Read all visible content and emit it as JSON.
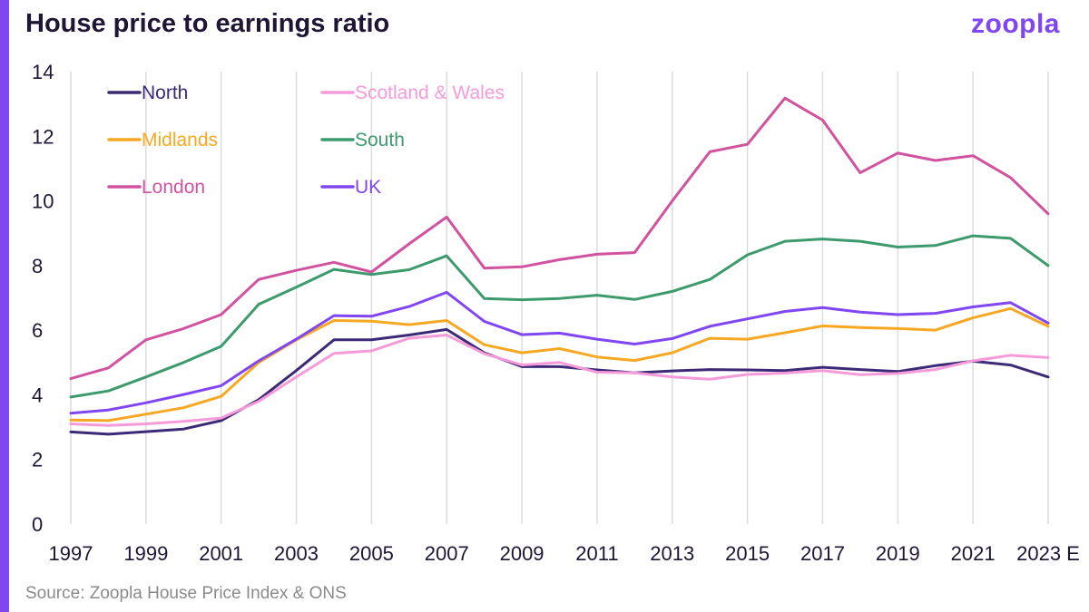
{
  "header": {
    "title": "House price to earnings ratio",
    "logo": "zoopla"
  },
  "footer": {
    "source": "Source: Zoopla House Price Index & ONS"
  },
  "colors": {
    "accent": "#8046f1",
    "gridline": "#dcdcdc",
    "text": "#1f1534"
  },
  "chart_data": {
    "type": "line",
    "title": "House price to earnings ratio",
    "xlabel": "",
    "ylabel": "",
    "ylim": [
      0,
      14
    ],
    "yticks": [
      0,
      2,
      4,
      6,
      8,
      10,
      12,
      14
    ],
    "x": [
      "1997",
      "1998",
      "1999",
      "2000",
      "2001",
      "2002",
      "2003",
      "2004",
      "2005",
      "2006",
      "2007",
      "2008",
      "2009",
      "2010",
      "2011",
      "2012",
      "2013",
      "2014",
      "2015",
      "2016",
      "2017",
      "2018",
      "2019",
      "2020",
      "2021",
      "2022",
      "2023 E"
    ],
    "xtick_labels": [
      "1997",
      "1999",
      "2001",
      "2003",
      "2005",
      "2007",
      "2009",
      "2011",
      "2013",
      "2015",
      "2017",
      "2019",
      "2021",
      "2023 E"
    ],
    "grid": "vertical",
    "legend_position": "top-left",
    "series": [
      {
        "name": "North",
        "color": "#3d2a77",
        "values": [
          2.85,
          2.78,
          2.86,
          2.94,
          3.2,
          3.85,
          4.75,
          5.7,
          5.7,
          5.85,
          6.02,
          5.3,
          4.87,
          4.87,
          4.77,
          4.68,
          4.74,
          4.78,
          4.77,
          4.75,
          4.85,
          4.78,
          4.72,
          4.9,
          5.04,
          4.92,
          4.55
        ]
      },
      {
        "name": "Scotland & Wales",
        "color": "#f59bd9",
        "values": [
          3.1,
          3.05,
          3.1,
          3.18,
          3.28,
          3.8,
          4.55,
          5.28,
          5.36,
          5.75,
          5.85,
          5.27,
          4.92,
          5.0,
          4.7,
          4.68,
          4.55,
          4.48,
          4.63,
          4.67,
          4.75,
          4.62,
          4.66,
          4.78,
          5.05,
          5.22,
          5.15
        ]
      },
      {
        "name": "Midlands",
        "color": "#f7a823",
        "values": [
          3.22,
          3.2,
          3.4,
          3.6,
          3.95,
          5.0,
          5.7,
          6.3,
          6.28,
          6.17,
          6.3,
          5.55,
          5.3,
          5.43,
          5.17,
          5.06,
          5.3,
          5.75,
          5.72,
          5.92,
          6.13,
          6.08,
          6.05,
          6.0,
          6.38,
          6.67,
          6.12
        ]
      },
      {
        "name": "South",
        "color": "#3c9a6c",
        "values": [
          3.93,
          4.12,
          4.55,
          5.0,
          5.5,
          6.8,
          7.33,
          7.88,
          7.72,
          7.87,
          8.3,
          6.98,
          6.94,
          6.98,
          7.08,
          6.95,
          7.2,
          7.57,
          8.33,
          8.75,
          8.82,
          8.75,
          8.57,
          8.62,
          8.92,
          8.84,
          8.0
        ]
      },
      {
        "name": "London",
        "color": "#d1529f",
        "values": [
          4.5,
          4.83,
          5.7,
          6.05,
          6.48,
          7.57,
          7.85,
          8.1,
          7.8,
          8.67,
          9.5,
          7.92,
          7.96,
          8.18,
          8.35,
          8.4,
          10.0,
          11.52,
          11.75,
          13.18,
          12.5,
          10.87,
          11.48,
          11.25,
          11.4,
          10.72,
          9.6
        ]
      },
      {
        "name": "UK",
        "color": "#8046f1",
        "values": [
          3.43,
          3.53,
          3.75,
          4.01,
          4.28,
          5.05,
          5.72,
          6.45,
          6.43,
          6.73,
          7.17,
          6.27,
          5.86,
          5.91,
          5.72,
          5.57,
          5.74,
          6.12,
          6.35,
          6.58,
          6.7,
          6.56,
          6.48,
          6.52,
          6.72,
          6.85,
          6.22
        ]
      }
    ]
  }
}
